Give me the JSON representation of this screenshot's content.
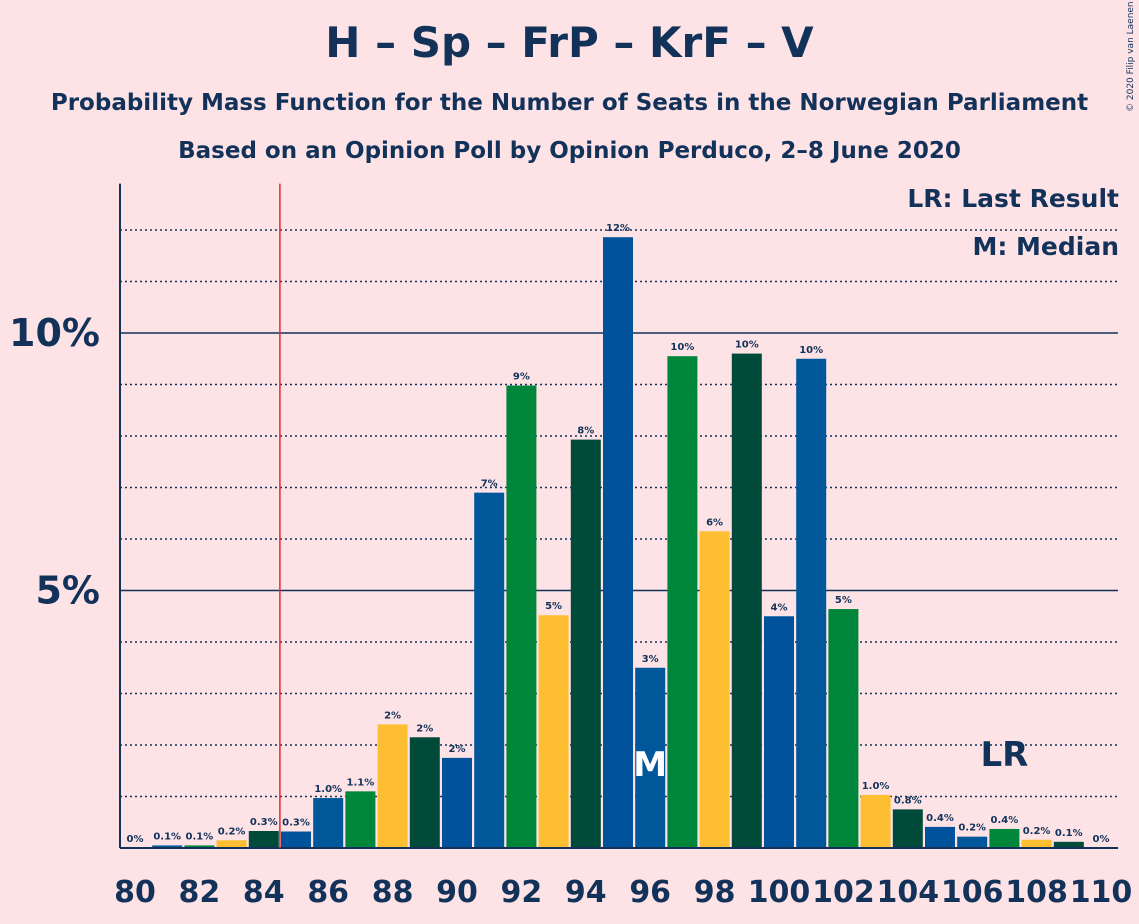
{
  "title": "H – Sp – FrP – KrF – V",
  "subtitle1": "Probability Mass Function for the Number of Seats in the Norwegian Parliament",
  "subtitle2": "Based on an Opinion Poll by Opinion Perduco, 2–8 June 2020",
  "copyright": "© 2020 Filip van Laenen",
  "legend": {
    "last_result": "LR: Last Result",
    "median": "M: Median"
  },
  "colors": {
    "background": "#fde3e6",
    "text": "#12325a",
    "last_result_line": "#e8282e",
    "cycle": [
      "#005799",
      "#00863a",
      "#febe32",
      "#004a3a",
      "#00529b"
    ]
  },
  "chart_data": {
    "type": "bar",
    "x": [
      80,
      81,
      82,
      83,
      84,
      85,
      86,
      87,
      88,
      89,
      90,
      91,
      92,
      93,
      94,
      95,
      96,
      97,
      98,
      99,
      100,
      101,
      102,
      103,
      104,
      105,
      106,
      107,
      108,
      109,
      110
    ],
    "values": [
      0,
      0.05,
      0.05,
      0.15,
      0.33,
      0.32,
      0.97,
      1.1,
      2.4,
      2.15,
      1.75,
      6.9,
      8.98,
      4.52,
      7.93,
      11.86,
      3.5,
      9.55,
      6.15,
      9.6,
      4.5,
      9.5,
      4.64,
      1.03,
      0.75,
      0.41,
      0.22,
      0.37,
      0.16,
      0.12,
      0
    ],
    "labels": [
      "0%",
      "0.1%",
      "0.1%",
      "0.2%",
      "0.3%",
      "0.3%",
      "1.0%",
      "1.1%",
      "2%",
      "2%",
      "2%",
      "7%",
      "9%",
      "5%",
      "8%",
      "12%",
      "3%",
      "10%",
      "6%",
      "10%",
      "4%",
      "10%",
      "5%",
      "1.0%",
      "0.8%",
      "0.4%",
      "0.2%",
      "0.4%",
      "0.2%",
      "0.1%",
      "0%"
    ],
    "xticks": [
      "80",
      "82",
      "84",
      "86",
      "88",
      "90",
      "92",
      "94",
      "96",
      "98",
      "100",
      "102",
      "104",
      "106",
      "108",
      "110"
    ],
    "yticks": [
      {
        "value": 5,
        "label": "5%"
      },
      {
        "value": 10,
        "label": "10%"
      }
    ],
    "ylim": [
      0,
      12.9
    ],
    "grid": "dotted every 1%",
    "last_result": {
      "x": 84.5,
      "label": "LR",
      "label_at": 107
    },
    "median": {
      "x": 96,
      "label": "M"
    }
  }
}
